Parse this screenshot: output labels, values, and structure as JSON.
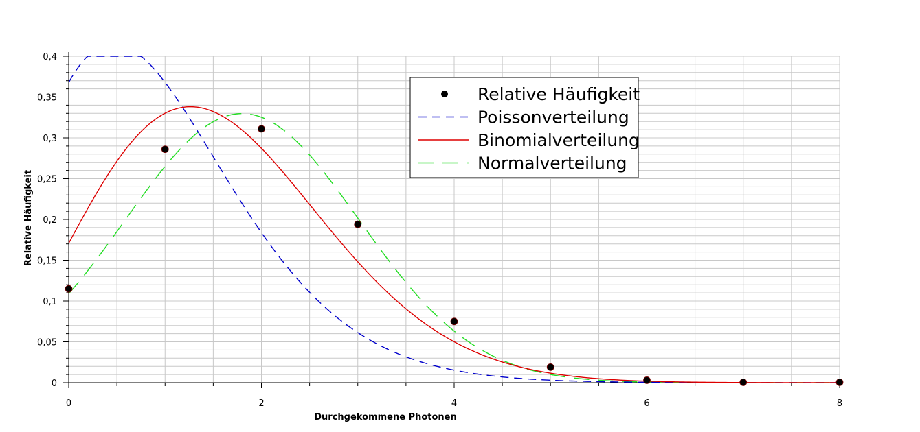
{
  "chart_data": {
    "type": "line",
    "title": "",
    "xlabel": "Durchgekommene Photonen",
    "ylabel": "Relative Häufigkeit",
    "xlim": [
      0,
      8
    ],
    "ylim": [
      0,
      0.4
    ],
    "x_ticks": [
      0,
      2,
      4,
      6,
      8
    ],
    "x_tick_labels": [
      "0",
      "2",
      "4",
      "6",
      "8"
    ],
    "y_ticks": [
      0,
      0.05,
      0.1,
      0.15,
      0.2,
      0.25,
      0.3,
      0.35,
      0.4
    ],
    "y_tick_labels": [
      "0",
      "0,05",
      "0,1",
      "0,15",
      "0,2",
      "0,25",
      "0,3",
      "0,35",
      "0,4"
    ],
    "grid": true,
    "legend_position": "top-right",
    "series": [
      {
        "name": "Relative Häufigkeit",
        "kind": "points",
        "color": "#000000",
        "x": [
          0,
          1,
          2,
          3,
          4,
          5,
          6,
          7,
          8
        ],
        "y": [
          0.115,
          0.286,
          0.311,
          0.194,
          0.075,
          0.019,
          0.003,
          0.0005,
          0.0005
        ]
      },
      {
        "name": "Poissonverteilung",
        "kind": "dashed",
        "color": "#0000cc",
        "distribution": "poisson",
        "mean": 1
      },
      {
        "name": "Binomialverteilung",
        "kind": "solid",
        "color": "#dd0000",
        "distribution": "binomial",
        "n": 10,
        "p": 0.162
      },
      {
        "name": "Normalverteilung",
        "kind": "longdash",
        "color": "#22dd22",
        "distribution": "normal",
        "mean": 1.8,
        "sd": 1.21
      }
    ]
  }
}
